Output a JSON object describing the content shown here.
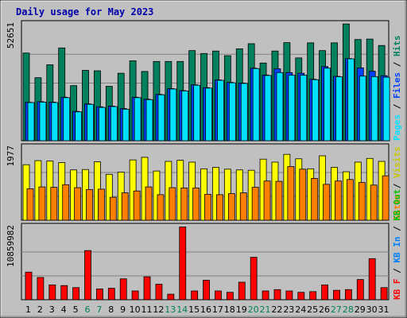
{
  "chart_data": {
    "type": "bar",
    "title": "Daily usage for May 2023",
    "days": [
      "1",
      "2",
      "3",
      "4",
      "5",
      "6",
      "7",
      "8",
      "9",
      "10",
      "11",
      "12",
      "13",
      "14",
      "15",
      "16",
      "17",
      "18",
      "19",
      "20",
      "21",
      "22",
      "23",
      "24",
      "25",
      "26",
      "27",
      "28",
      "29",
      "30",
      "31"
    ],
    "weekend_days": [
      "6",
      "7",
      "13",
      "14",
      "20",
      "21",
      "27",
      "28"
    ],
    "colors": {
      "title": "#0000aa",
      "hits": "#00805c",
      "files": "#0040ff",
      "pages": "#00e0ff",
      "visits": "#ffff00",
      "sites": "#ff8000",
      "kbin": "#0080ff",
      "kbout": "#00c000",
      "kbf": "#ff0000",
      "panel_bg": "#c0c0c0",
      "weekday_label": "#000000",
      "weekend_label": "#00805c"
    },
    "panels": [
      {
        "name": "hits-files-pages",
        "ymax_label": "52651",
        "ymax": 52651,
        "right_legend": [
          {
            "text": "Pages",
            "color": "#00e0ff"
          },
          {
            "text": " / ",
            "color": "#000000"
          },
          {
            "text": "Files",
            "color": "#0040ff"
          },
          {
            "text": " / ",
            "color": "#000000"
          },
          {
            "text": "Hits",
            "color": "#00805c"
          }
        ],
        "series": [
          {
            "name": "Hits",
            "color": "#00805c",
            "values": [
              39500,
              28400,
              34200,
              41800,
              24800,
              31700,
              31500,
              24500,
              30400,
              36000,
              31200,
              35700,
              35700,
              35700,
              40600,
              39300,
              40400,
              38300,
              41400,
              43700,
              35000,
              40400,
              44200,
              37300,
              44100,
              40600,
              44100,
              52600,
              45600,
              45800,
              42900
            ]
          },
          {
            "name": "Files",
            "color": "#0040ff",
            "values": [
              17300,
              17600,
              17400,
              19600,
              13200,
              16600,
              15300,
              15600,
              14500,
              19600,
              18700,
              20900,
              23500,
              22600,
              25200,
              23900,
              27400,
              26300,
              26000,
              32700,
              29600,
              32400,
              30700,
              30400,
              27700,
              33400,
              29000,
              37000,
              32800,
              31300,
              29300
            ]
          },
          {
            "name": "Pages",
            "color": "#00e0ff",
            "values": [
              17200,
              17400,
              17200,
              19400,
              13000,
              16400,
              15000,
              15400,
              14200,
              19400,
              18500,
              20700,
              23300,
              22400,
              25000,
              23700,
              27200,
              26100,
              25800,
              32500,
              29400,
              30700,
              29500,
              29500,
              27500,
              32700,
              28800,
              36900,
              29100,
              28900,
              28600
            ]
          }
        ]
      },
      {
        "name": "visits-sites",
        "ymax_label": "1977",
        "ymax": 1977,
        "right_legend": [
          {
            "text": "Sites",
            "color": "#ff8000"
          },
          {
            "text": " / ",
            "color": "#000000"
          },
          {
            "text": "Visits",
            "color": "#c8c800"
          }
        ],
        "series": [
          {
            "name": "Visits",
            "color": "#ffff00",
            "values": [
              1500,
              1610,
              1600,
              1560,
              1360,
              1370,
              1580,
              1240,
              1300,
              1630,
              1700,
              1330,
              1590,
              1620,
              1570,
              1390,
              1430,
              1380,
              1360,
              1350,
              1650,
              1570,
              1780,
              1660,
              1390,
              1740,
              1430,
              1310,
              1570,
              1670,
              1590
            ]
          },
          {
            "name": "Sites",
            "color": "#ff8000",
            "values": [
              850,
              900,
              890,
              960,
              880,
              830,
              840,
              620,
              740,
              790,
              900,
              690,
              880,
              870,
              870,
              700,
              690,
              720,
              740,
              890,
              1060,
              1050,
              1450,
              1380,
              1130,
              970,
              1060,
              1100,
              1020,
              950,
              1200
            ]
          }
        ]
      },
      {
        "name": "kbytes",
        "ymax_label": "10859982",
        "ymax": 10859982,
        "right_legend": [
          {
            "text": "KB F",
            "color": "#ff0000"
          },
          {
            "text": " / ",
            "color": "#000000"
          },
          {
            "text": "KB In",
            "color": "#0080ff"
          },
          {
            "text": " / ",
            "color": "#000000"
          },
          {
            "text": "KB Out",
            "color": "#00c000"
          }
        ],
        "series": [
          {
            "name": "KB F",
            "color": "#ff0000",
            "values": [
              4100000,
              3300000,
              2200000,
              2100000,
              1800000,
              7300000,
              1600000,
              1700000,
              3100000,
              1300000,
              3400000,
              2300000,
              820000,
              10800000,
              1300000,
              2900000,
              1300000,
              1100000,
              2600000,
              6300000,
              1300000,
              1500000,
              1300000,
              1100000,
              1200000,
              2200000,
              1400000,
              1500000,
              3000000,
              6100000,
              1800000
            ]
          }
        ]
      }
    ]
  }
}
